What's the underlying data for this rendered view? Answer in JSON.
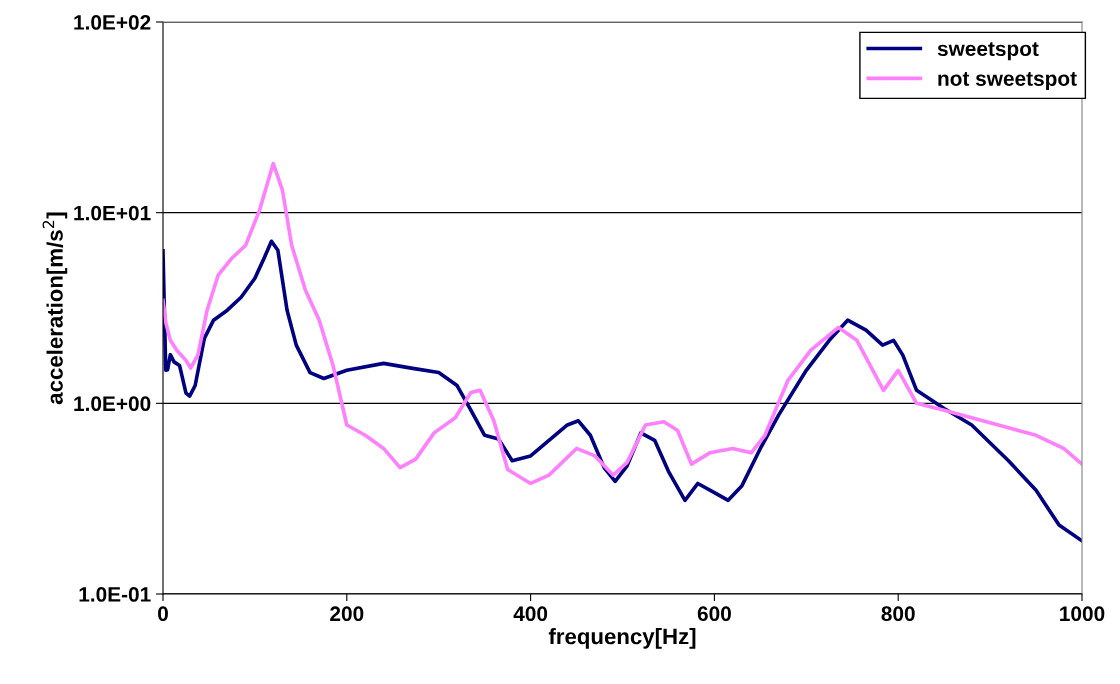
{
  "chart_data": {
    "type": "line",
    "xlabel": "frequency[Hz]",
    "ylabel": "acceleration[m/s$^{2}$]",
    "log": "y",
    "grid": "y",
    "legend": "top right",
    "line_style": "solid",
    "marker": "none",
    "xlim": [
      0,
      1000
    ],
    "xticks": [
      0,
      200,
      400,
      600,
      800,
      1000
    ],
    "ylim": [
      0.1,
      100
    ],
    "yticks": [
      {
        "value": 0.1,
        "label": "1.0E-01"
      },
      {
        "value": 1,
        "label": "1.0E+00"
      },
      {
        "value": 10,
        "label": "1.0E+01"
      },
      {
        "value": 100,
        "label": "1.0E+02"
      }
    ],
    "series": [
      {
        "name": "sweetspot",
        "color": "#000080",
        "x": [
          0,
          3,
          5,
          8,
          12,
          18,
          25,
          29,
          35,
          45,
          55,
          70,
          85,
          100,
          110,
          118,
          125,
          135,
          145,
          160,
          175,
          200,
          240,
          270,
          300,
          320,
          335,
          350,
          365,
          380,
          400,
          420,
          440,
          452,
          465,
          480,
          492,
          505,
          520,
          535,
          550,
          568,
          582,
          600,
          615,
          630,
          650,
          670,
          700,
          725,
          745,
          765,
          783,
          795,
          805,
          820,
          850,
          880,
          920,
          950,
          975,
          1000
        ],
        "values": [
          6.3,
          1.49,
          1.5,
          1.8,
          1.65,
          1.58,
          1.13,
          1.09,
          1.24,
          2.19,
          2.73,
          3.08,
          3.6,
          4.53,
          5.77,
          7.08,
          6.35,
          3.08,
          2.02,
          1.45,
          1.35,
          1.49,
          1.62,
          1.53,
          1.45,
          1.24,
          0.92,
          0.68,
          0.65,
          0.5,
          0.53,
          0.64,
          0.77,
          0.81,
          0.68,
          0.46,
          0.39,
          0.47,
          0.7,
          0.64,
          0.44,
          0.31,
          0.38,
          0.34,
          0.31,
          0.37,
          0.58,
          0.87,
          1.49,
          2.14,
          2.73,
          2.42,
          2.02,
          2.14,
          1.79,
          1.17,
          0.94,
          0.77,
          0.5,
          0.35,
          0.23,
          0.19
        ]
      },
      {
        "name": "not sweetspot",
        "color": "#ff80ff",
        "x": [
          0,
          3,
          8,
          15,
          25,
          30,
          38,
          48,
          60,
          75,
          90,
          105,
          120,
          130,
          140,
          155,
          170,
          185,
          200,
          220,
          240,
          258,
          275,
          295,
          318,
          335,
          345,
          360,
          375,
          400,
          420,
          450,
          470,
          490,
          505,
          525,
          545,
          560,
          575,
          595,
          620,
          640,
          655,
          680,
          705,
          735,
          755,
          784,
          800,
          820,
          850,
          900,
          950,
          980,
          1000
        ],
        "values": [
          3.47,
          2.66,
          2.14,
          1.9,
          1.68,
          1.53,
          1.79,
          3.08,
          4.7,
          5.77,
          6.75,
          10.3,
          18.1,
          13.1,
          6.75,
          3.92,
          2.73,
          1.58,
          0.77,
          0.68,
          0.58,
          0.46,
          0.51,
          0.7,
          0.84,
          1.14,
          1.17,
          0.81,
          0.45,
          0.38,
          0.42,
          0.58,
          0.53,
          0.42,
          0.49,
          0.77,
          0.8,
          0.72,
          0.48,
          0.55,
          0.58,
          0.55,
          0.68,
          1.32,
          1.9,
          2.5,
          2.14,
          1.17,
          1.49,
          1.0,
          0.92,
          0.79,
          0.68,
          0.58,
          0.48
        ]
      }
    ]
  }
}
